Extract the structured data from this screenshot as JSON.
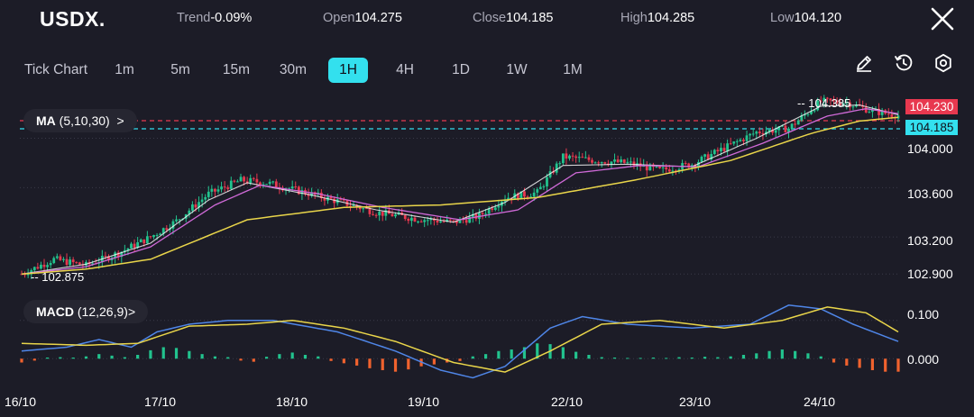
{
  "header": {
    "symbol": "USDX.",
    "trend_label": "Trend",
    "trend_value": "-0.09%",
    "open_label": "Open",
    "open_value": "104.275",
    "close_label": "Close",
    "close_value": "104.185",
    "high_label": "High",
    "high_value": "104.285",
    "low_label": "Low",
    "low_value": "104.120",
    "close_icon": "close-x-icon"
  },
  "timeframes": [
    "Tick Chart",
    "1m",
    "5m",
    "15m",
    "30m",
    "1H",
    "4H",
    "1D",
    "1W",
    "1M"
  ],
  "active_timeframe": "1H",
  "toolbar_icons": [
    "pencil-icon",
    "history-clock-icon",
    "settings-gear-icon"
  ],
  "indicators": {
    "ma_label": "MA",
    "ma_params": "(5,10,30)",
    "ma_chevron": ">",
    "macd_label": "MACD",
    "macd_params": "(12,26,9)",
    "macd_chevron": ">"
  },
  "price_tags": {
    "prev": "104.230",
    "current": "104.185",
    "max_marker": "104.385",
    "min_marker": "102.875"
  },
  "colors": {
    "background": "#1c1c27",
    "up": "#22c38e",
    "down": "#e8384f",
    "accent": "#33e0ee",
    "ma5": "#ffffff",
    "ma10": "#d06ad8",
    "ma30": "#e9d54a",
    "macd_line": "#4f86e8",
    "signal_line": "#e9d54a",
    "hist_pos": "#22c38e",
    "hist_neg": "#f0622e"
  },
  "chart_data": [
    {
      "type": "candlestick",
      "title": "USDX.",
      "y_ticks": [
        "104.000",
        "103.600",
        "103.200",
        "102.900"
      ],
      "x_ticks": [
        "16/10",
        "17/10",
        "18/10",
        "19/10",
        "22/10",
        "23/10",
        "24/10"
      ],
      "ylim": [
        102.8,
        104.42
      ],
      "close_path": [
        [
          0,
          102.9
        ],
        [
          10,
          103.02
        ],
        [
          20,
          102.97
        ],
        [
          30,
          103.07
        ],
        [
          40,
          103.2
        ],
        [
          48,
          103.33
        ],
        [
          58,
          103.55
        ],
        [
          68,
          103.66
        ],
        [
          76,
          103.64
        ],
        [
          88,
          103.56
        ],
        [
          98,
          103.49
        ],
        [
          110,
          103.4
        ],
        [
          122,
          103.35
        ],
        [
          134,
          103.32
        ],
        [
          142,
          103.37
        ],
        [
          150,
          103.52
        ],
        [
          160,
          103.56
        ],
        [
          168,
          103.85
        ],
        [
          178,
          103.82
        ],
        [
          188,
          103.8
        ],
        [
          198,
          103.74
        ],
        [
          208,
          103.79
        ],
        [
          218,
          103.92
        ],
        [
          228,
          104.05
        ],
        [
          238,
          104.08
        ],
        [
          248,
          104.3
        ],
        [
          256,
          104.29
        ],
        [
          264,
          104.22
        ],
        [
          272,
          104.185
        ]
      ],
      "series": [
        {
          "name": "MA5",
          "path": [
            [
              0,
              102.9
            ],
            [
              20,
              102.98
            ],
            [
              40,
              103.15
            ],
            [
              58,
              103.5
            ],
            [
              70,
              103.64
            ],
            [
              90,
              103.54
            ],
            [
              110,
              103.42
            ],
            [
              134,
              103.32
            ],
            [
              150,
              103.48
            ],
            [
              168,
              103.78
            ],
            [
              188,
              103.79
            ],
            [
              208,
              103.77
            ],
            [
              228,
              104.0
            ],
            [
              248,
              104.26
            ],
            [
              260,
              104.27
            ],
            [
              272,
              104.19
            ]
          ]
        },
        {
          "name": "MA10",
          "path": [
            [
              0,
              102.9
            ],
            [
              20,
              102.96
            ],
            [
              40,
              103.12
            ],
            [
              60,
              103.46
            ],
            [
              74,
              103.62
            ],
            [
              92,
              103.55
            ],
            [
              112,
              103.44
            ],
            [
              136,
              103.34
            ],
            [
              154,
              103.42
            ],
            [
              172,
              103.72
            ],
            [
              192,
              103.78
            ],
            [
              210,
              103.77
            ],
            [
              230,
              103.96
            ],
            [
              250,
              104.18
            ],
            [
              262,
              104.24
            ],
            [
              272,
              104.2
            ]
          ]
        },
        {
          "name": "MA30",
          "path": [
            [
              0,
              102.9
            ],
            [
              20,
              102.94
            ],
            [
              40,
              103.02
            ],
            [
              70,
              103.34
            ],
            [
              100,
              103.44
            ],
            [
              130,
              103.46
            ],
            [
              160,
              103.52
            ],
            [
              190,
              103.66
            ],
            [
              220,
              103.82
            ],
            [
              245,
              104.04
            ],
            [
              260,
              104.14
            ],
            [
              272,
              104.17
            ]
          ]
        }
      ]
    },
    {
      "type": "macd",
      "title": "MACD (12,26,9)",
      "y_ticks": [
        "0.100",
        "0.000"
      ],
      "ylim": [
        -0.07,
        0.17
      ],
      "macd_path": [
        [
          0,
          0.02
        ],
        [
          14,
          0.03
        ],
        [
          24,
          0.05
        ],
        [
          34,
          0.03
        ],
        [
          42,
          0.07
        ],
        [
          52,
          0.09
        ],
        [
          64,
          0.1
        ],
        [
          78,
          0.1
        ],
        [
          98,
          0.07
        ],
        [
          116,
          0.02
        ],
        [
          130,
          -0.03
        ],
        [
          140,
          -0.05
        ],
        [
          150,
          -0.02
        ],
        [
          164,
          0.08
        ],
        [
          174,
          0.11
        ],
        [
          188,
          0.09
        ],
        [
          208,
          0.08
        ],
        [
          226,
          0.09
        ],
        [
          238,
          0.14
        ],
        [
          248,
          0.13
        ],
        [
          258,
          0.09
        ],
        [
          272,
          0.045
        ]
      ],
      "signal_path": [
        [
          0,
          0.04
        ],
        [
          20,
          0.035
        ],
        [
          36,
          0.04
        ],
        [
          52,
          0.085
        ],
        [
          70,
          0.09
        ],
        [
          84,
          0.1
        ],
        [
          100,
          0.08
        ],
        [
          116,
          0.045
        ],
        [
          134,
          -0.01
        ],
        [
          150,
          -0.035
        ],
        [
          164,
          0.02
        ],
        [
          180,
          0.09
        ],
        [
          198,
          0.1
        ],
        [
          218,
          0.08
        ],
        [
          236,
          0.1
        ],
        [
          250,
          0.135
        ],
        [
          262,
          0.12
        ],
        [
          272,
          0.07
        ]
      ],
      "histogram": [
        [
          0,
          -0.01
        ],
        [
          4,
          -0.005
        ],
        [
          8,
          0.003
        ],
        [
          12,
          0.004
        ],
        [
          16,
          0.003
        ],
        [
          20,
          0.006
        ],
        [
          24,
          0.012
        ],
        [
          28,
          0.008
        ],
        [
          32,
          0.004
        ],
        [
          36,
          0.01
        ],
        [
          40,
          0.022
        ],
        [
          44,
          0.03
        ],
        [
          48,
          0.028
        ],
        [
          52,
          0.02
        ],
        [
          56,
          0.012
        ],
        [
          60,
          0.006
        ],
        [
          64,
          0.004
        ],
        [
          68,
          -0.005
        ],
        [
          72,
          -0.008
        ],
        [
          76,
          0.005
        ],
        [
          80,
          0.012
        ],
        [
          84,
          0.016
        ],
        [
          88,
          0.01
        ],
        [
          92,
          0.006
        ],
        [
          96,
          -0.006
        ],
        [
          100,
          -0.012
        ],
        [
          104,
          -0.018
        ],
        [
          108,
          -0.025
        ],
        [
          112,
          -0.03
        ],
        [
          116,
          -0.034
        ],
        [
          120,
          -0.028
        ],
        [
          124,
          -0.02
        ],
        [
          128,
          -0.015
        ],
        [
          132,
          -0.01
        ],
        [
          136,
          -0.006
        ],
        [
          140,
          0.006
        ],
        [
          144,
          0.012
        ],
        [
          148,
          0.02
        ],
        [
          152,
          0.024
        ],
        [
          156,
          0.03
        ],
        [
          160,
          0.04
        ],
        [
          164,
          0.038
        ],
        [
          168,
          0.03
        ],
        [
          172,
          0.018
        ],
        [
          176,
          0.01
        ],
        [
          180,
          0.004
        ],
        [
          184,
          0.003
        ],
        [
          188,
          0.002
        ],
        [
          192,
          0.002
        ],
        [
          196,
          0.003
        ],
        [
          200,
          0.002
        ],
        [
          204,
          0.004
        ],
        [
          208,
          0.003
        ],
        [
          212,
          0.005
        ],
        [
          216,
          0.004
        ],
        [
          220,
          0.006
        ],
        [
          224,
          0.01
        ],
        [
          228,
          0.014
        ],
        [
          232,
          0.02
        ],
        [
          236,
          0.024
        ],
        [
          240,
          0.02
        ],
        [
          244,
          0.014
        ],
        [
          248,
          0.006
        ],
        [
          252,
          -0.01
        ],
        [
          256,
          -0.018
        ],
        [
          260,
          -0.024
        ],
        [
          264,
          -0.03
        ],
        [
          268,
          -0.034
        ],
        [
          272,
          -0.034
        ]
      ]
    }
  ]
}
